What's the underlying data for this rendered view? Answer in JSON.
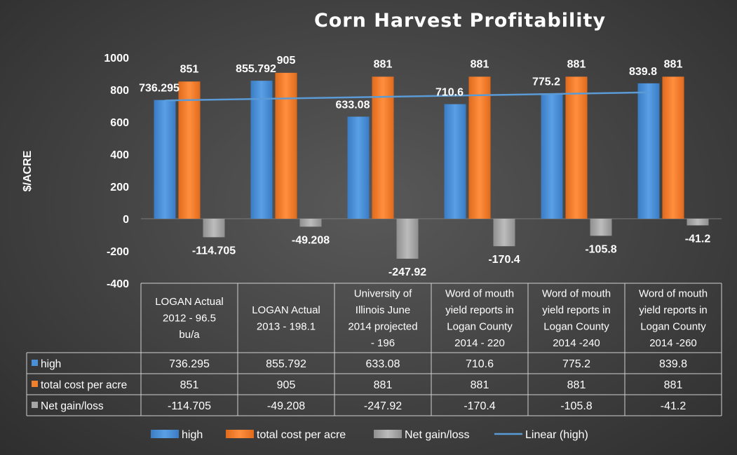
{
  "chart_data": {
    "type": "bar",
    "title": "Corn Harvest Profitability",
    "ylabel": "$/ACRE",
    "xlabel": "",
    "ylim": [
      -400,
      1000
    ],
    "yticks": [
      -400,
      -200,
      0,
      200,
      400,
      600,
      800,
      1000
    ],
    "grid": false,
    "legend_position": "bottom",
    "categories": [
      [
        "LOGAN Actual",
        "2012 - 96.5",
        "bu/a"
      ],
      [
        "LOGAN  Actual",
        "2013 - 198.1"
      ],
      [
        "University of",
        "Illinois June",
        "2014 projected",
        "- 196"
      ],
      [
        "Word of mouth",
        "yield reports in",
        "Logan County",
        "2014 - 220"
      ],
      [
        "Word of mouth",
        "yield reports in",
        "Logan County",
        "2014 -240"
      ],
      [
        "Word of mouth",
        "yield reports in",
        "Logan County",
        "2014 -260"
      ]
    ],
    "series": [
      {
        "name": "high",
        "color": "#4a90d9",
        "values": [
          736.295,
          855.792,
          633.08,
          710.6,
          775.2,
          839.8
        ]
      },
      {
        "name": "total cost per acre",
        "color": "#f07f2e",
        "values": [
          851,
          905,
          881,
          881,
          881,
          881
        ]
      },
      {
        "name": "Net gain/loss",
        "color": "#a6a6a6",
        "values": [
          -114.705,
          -49.208,
          -247.92,
          -170.4,
          -105.8,
          -41.2
        ]
      }
    ],
    "trendline": {
      "name": "Linear (high)",
      "of_series": "high",
      "type": "linear",
      "color": "#5b9bd5"
    },
    "data_table": true
  }
}
